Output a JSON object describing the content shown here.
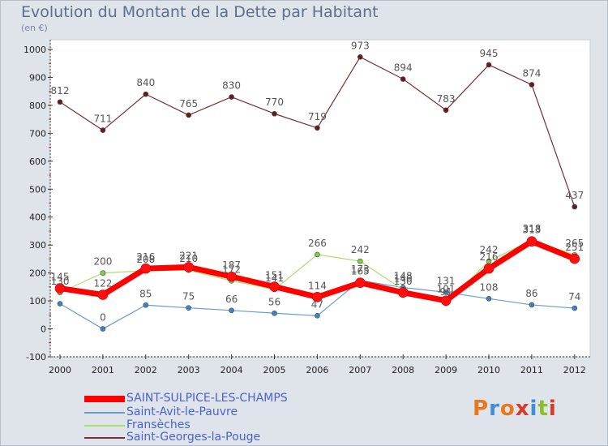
{
  "title": "Evolution du Montant de la Dette par Habitant",
  "subtitle": "(en €)",
  "logo": {
    "text": "Proxiti",
    "colors": [
      "#e8781e",
      "#3c8fd6",
      "#e8781e",
      "#d83a2a",
      "#3c8fd6",
      "#8bbf2e",
      "#d83a2a"
    ]
  },
  "chart_data": {
    "type": "line",
    "categories": [
      "2000",
      "2001",
      "2002",
      "2003",
      "2004",
      "2005",
      "2006",
      "2007",
      "2008",
      "2009",
      "2010",
      "2011",
      "2012"
    ],
    "ylim": [
      -100,
      1000
    ],
    "yticks": [
      "-100",
      "0",
      "100",
      "200",
      "300",
      "400",
      "500",
      "600",
      "700",
      "800",
      "900",
      "1000"
    ],
    "grid": false,
    "series": [
      {
        "name": "Saint-Georges-la-Pouge",
        "color": "#7a2e2e",
        "marker": "#6a1a1a",
        "width": 1.2,
        "values": [
          812,
          711,
          840,
          765,
          830,
          770,
          719,
          973,
          894,
          783,
          945,
          874,
          437
        ],
        "labels": [
          "812",
          "711",
          "840",
          "765",
          "830",
          "770",
          "719",
          "973",
          "894",
          "783",
          "945",
          "874",
          "437"
        ]
      },
      {
        "name": "Saint-Avit-le-Pauvre",
        "color": "#6a9cc8",
        "marker": "#3f84c6",
        "width": 1.2,
        "values": [
          90,
          0,
          85,
          75,
          66,
          56,
          47,
          173,
          148,
          131,
          108,
          86,
          74
        ],
        "labels": [
          "",
          "0",
          "85",
          "75",
          "66",
          "56",
          "47",
          "173",
          "148",
          "131",
          "108",
          "86",
          "74"
        ]
      },
      {
        "name": "Fransèches",
        "color": "#a6e070",
        "marker": "#7dd33b",
        "width": 1.2,
        "values": [
          130,
          200,
          208,
          210,
          172,
          141,
          266,
          242,
          140,
          91,
          242,
          318,
          265
        ],
        "labels": [
          "130",
          "200",
          "208",
          "210",
          "172",
          "141",
          "266",
          "242",
          "140",
          "91",
          "242",
          "318",
          "265"
        ]
      },
      {
        "name": "SAINT-SULPICE-LES-CHAMPS",
        "color": "#ff0000",
        "marker": "#ff1010",
        "width": 7,
        "values": [
          145,
          122,
          216,
          221,
          187,
          151,
          114,
          165,
          130,
          101,
          216,
          313,
          251
        ],
        "labels": [
          "145",
          "122",
          "216",
          "221",
          "187",
          "151",
          "114",
          "165",
          "130",
          "101",
          "216",
          "313",
          "251"
        ]
      }
    ]
  },
  "legend": [
    {
      "label": "SAINT-SULPICE-LES-CHAMPS",
      "color": "#ff0000",
      "weight": "thick"
    },
    {
      "label": "Saint-Avit-le-Pauvre",
      "color": "#6a9cc8",
      "weight": "thin"
    },
    {
      "label": "Fransèches",
      "color": "#a6e070",
      "weight": "thin"
    },
    {
      "label": "Saint-Georges-la-Pouge",
      "color": "#7a2e2e",
      "weight": "thin"
    }
  ]
}
